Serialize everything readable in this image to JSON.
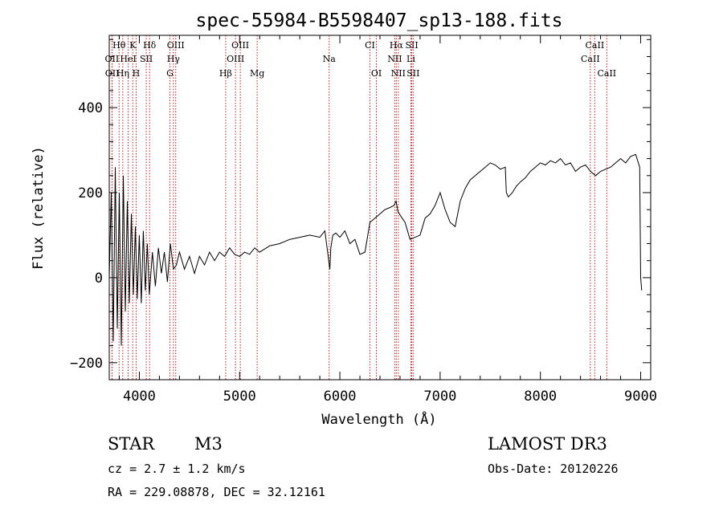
{
  "chart_data": {
    "type": "line",
    "title": "spec-55984-B5598407_sp13-188.fits",
    "xlabel": "Wavelength (Å)",
    "ylabel": "Flux (relative)",
    "xlim": [
      3700,
      9100
    ],
    "ylim": [
      -240,
      570
    ],
    "xticks": [
      4000,
      5000,
      6000,
      7000,
      8000,
      9000
    ],
    "yticks": [
      -200,
      0,
      200,
      400
    ],
    "series": [
      {
        "name": "flux",
        "x": [
          3700,
          3720,
          3740,
          3760,
          3780,
          3800,
          3820,
          3840,
          3860,
          3880,
          3900,
          3920,
          3940,
          3960,
          3980,
          4000,
          4020,
          4040,
          4060,
          4080,
          4100,
          4130,
          4160,
          4190,
          4220,
          4250,
          4280,
          4310,
          4340,
          4370,
          4400,
          4450,
          4500,
          4550,
          4600,
          4650,
          4700,
          4750,
          4800,
          4850,
          4900,
          4950,
          5000,
          5050,
          5100,
          5150,
          5200,
          5300,
          5400,
          5500,
          5600,
          5700,
          5800,
          5850,
          5900,
          5910,
          5930,
          5960,
          6000,
          6050,
          6100,
          6150,
          6200,
          6250,
          6300,
          6350,
          6400,
          6450,
          6500,
          6540,
          6560,
          6580,
          6620,
          6650,
          6700,
          6750,
          6800,
          6850,
          6900,
          6950,
          7000,
          7050,
          7100,
          7150,
          7200,
          7250,
          7300,
          7350,
          7400,
          7450,
          7500,
          7550,
          7600,
          7650,
          7660,
          7680,
          7720,
          7760,
          7800,
          7850,
          7900,
          7950,
          8000,
          8050,
          8100,
          8150,
          8200,
          8250,
          8300,
          8350,
          8400,
          8450,
          8500,
          8550,
          8600,
          8650,
          8700,
          8750,
          8800,
          8850,
          8900,
          8950,
          8990,
          9000,
          9010
        ],
        "values": [
          0,
          200,
          -150,
          260,
          -120,
          200,
          -160,
          240,
          -80,
          180,
          -60,
          150,
          -40,
          120,
          -50,
          100,
          -60,
          110,
          -30,
          80,
          -40,
          60,
          -20,
          70,
          10,
          60,
          -10,
          80,
          20,
          30,
          60,
          20,
          50,
          10,
          50,
          30,
          60,
          40,
          60,
          50,
          70,
          55,
          50,
          60,
          55,
          70,
          60,
          75,
          80,
          90,
          95,
          100,
          95,
          110,
          20,
          70,
          100,
          105,
          95,
          110,
          80,
          90,
          55,
          60,
          130,
          140,
          150,
          160,
          165,
          170,
          180,
          155,
          140,
          130,
          90,
          95,
          100,
          140,
          150,
          170,
          200,
          160,
          130,
          120,
          180,
          210,
          230,
          240,
          250,
          260,
          270,
          265,
          255,
          260,
          200,
          190,
          200,
          215,
          225,
          235,
          250,
          260,
          270,
          265,
          275,
          270,
          280,
          265,
          270,
          250,
          260,
          265,
          250,
          240,
          250,
          255,
          260,
          270,
          280,
          270,
          285,
          290,
          260,
          0,
          -30
        ]
      }
    ],
    "line_markers": [
      {
        "label": "Hθ",
        "x": 3798,
        "row": 0
      },
      {
        "label": "K",
        "x": 3934,
        "row": 0
      },
      {
        "label": "Hδ",
        "x": 4102,
        "row": 0
      },
      {
        "label": "OIII",
        "x": 4363,
        "row": 0
      },
      {
        "label": "OIII",
        "x": 5007,
        "row": 0
      },
      {
        "label": "CI",
        "x": 6300,
        "row": 0
      },
      {
        "label": "Hα",
        "x": 6563,
        "row": 0
      },
      {
        "label": "SII",
        "x": 6717,
        "row": 0
      },
      {
        "label": "CaII",
        "x": 8542,
        "row": 0
      },
      {
        "label": "OII",
        "x": 3727,
        "row": 1
      },
      {
        "label": "HeI",
        "x": 3889,
        "row": 1
      },
      {
        "label": "SII",
        "x": 4069,
        "row": 1
      },
      {
        "label": "Hγ",
        "x": 4340,
        "row": 1
      },
      {
        "label": "OIII",
        "x": 4959,
        "row": 1
      },
      {
        "label": "Na",
        "x": 5893,
        "row": 1
      },
      {
        "label": "NII",
        "x": 6548,
        "row": 1
      },
      {
        "label": "Li",
        "x": 6708,
        "row": 1
      },
      {
        "label": "CaII",
        "x": 8498,
        "row": 1
      },
      {
        "label": "OII",
        "x": 3729,
        "row": 2
      },
      {
        "label": "Hη",
        "x": 3835,
        "row": 2
      },
      {
        "label": "H",
        "x": 3968,
        "row": 2
      },
      {
        "label": "G",
        "x": 4305,
        "row": 2
      },
      {
        "label": "Hβ",
        "x": 4861,
        "row": 2
      },
      {
        "label": "Mg",
        "x": 5175,
        "row": 2
      },
      {
        "label": "OI",
        "x": 6364,
        "row": 2
      },
      {
        "label": "NII",
        "x": 6583,
        "row": 2
      },
      {
        "label": "SII",
        "x": 6731,
        "row": 2
      },
      {
        "label": "CaII",
        "x": 8662,
        "row": 2
      }
    ]
  },
  "info": {
    "object_class": "STAR",
    "subclass": "M3",
    "survey": "LAMOST DR3",
    "cz": "cz = 2.7 ± 1.2 km/s",
    "obs_date": "Obs-Date: 20120226",
    "coords": "RA = 229.08878, DEC =  32.12161"
  },
  "colors": {
    "axis": "#000000",
    "spectrum": "#000000",
    "marker_line": "#b22222",
    "background": "#ffffff"
  }
}
